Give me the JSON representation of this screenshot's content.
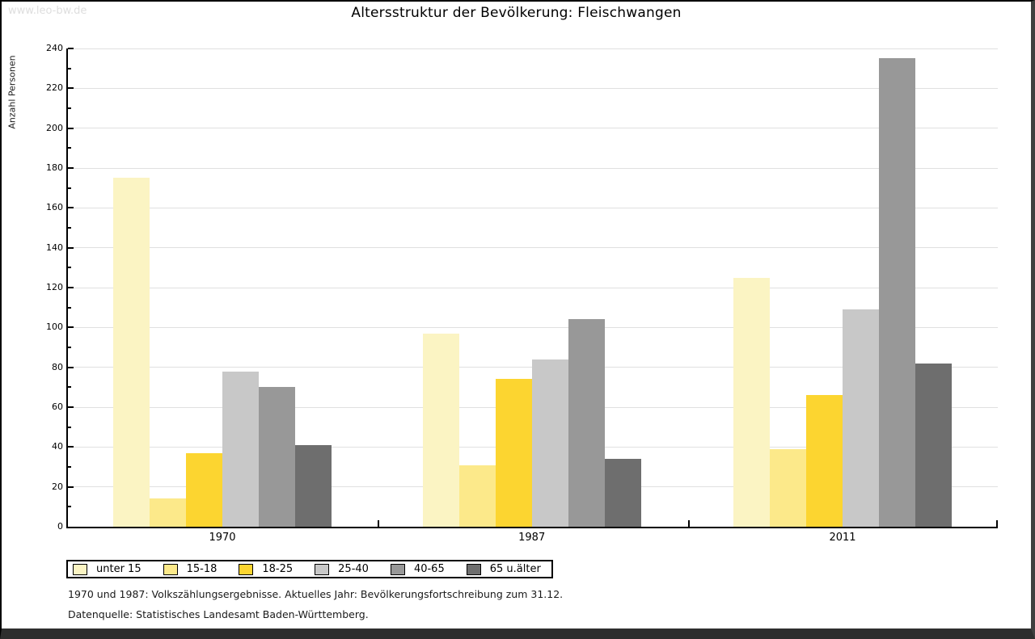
{
  "page": {
    "watermark": "www.leo-bw.de",
    "footnotes": [
      "1970 und 1987: Volkszählungsergebnisse. Aktuelles Jahr: Bevölkerungsfortschreibung zum 31.12.",
      "Datenquelle: Statistisches Landesamt Baden-Württemberg."
    ]
  },
  "chart_data": {
    "type": "bar",
    "title": "Altersstruktur der Bevölkerung: Fleischwangen",
    "ylabel": "Anzahl Personen",
    "xlabel": "",
    "categories": [
      "1970",
      "1987",
      "2011"
    ],
    "series": [
      {
        "name": "unter 15",
        "color": "#FBF4C3",
        "values": [
          175,
          97,
          125
        ]
      },
      {
        "name": "15-18",
        "color": "#FCE98A",
        "values": [
          14,
          31,
          39
        ]
      },
      {
        "name": "18-25",
        "color": "#FCD530",
        "values": [
          37,
          74,
          66
        ]
      },
      {
        "name": "25-40",
        "color": "#C8C8C8",
        "values": [
          78,
          84,
          109
        ]
      },
      {
        "name": "40-65",
        "color": "#989898",
        "values": [
          70,
          104,
          235
        ]
      },
      {
        "name": "65 u.älter",
        "color": "#6E6E6E",
        "values": [
          41,
          34,
          82
        ]
      }
    ],
    "ylim": [
      0,
      240
    ],
    "ytick_major": 20,
    "ytick_minor": 10,
    "grid": true,
    "gridline_color": "#E0E0E0",
    "axis_color": "#000000",
    "legend_position": "bottom-left"
  }
}
